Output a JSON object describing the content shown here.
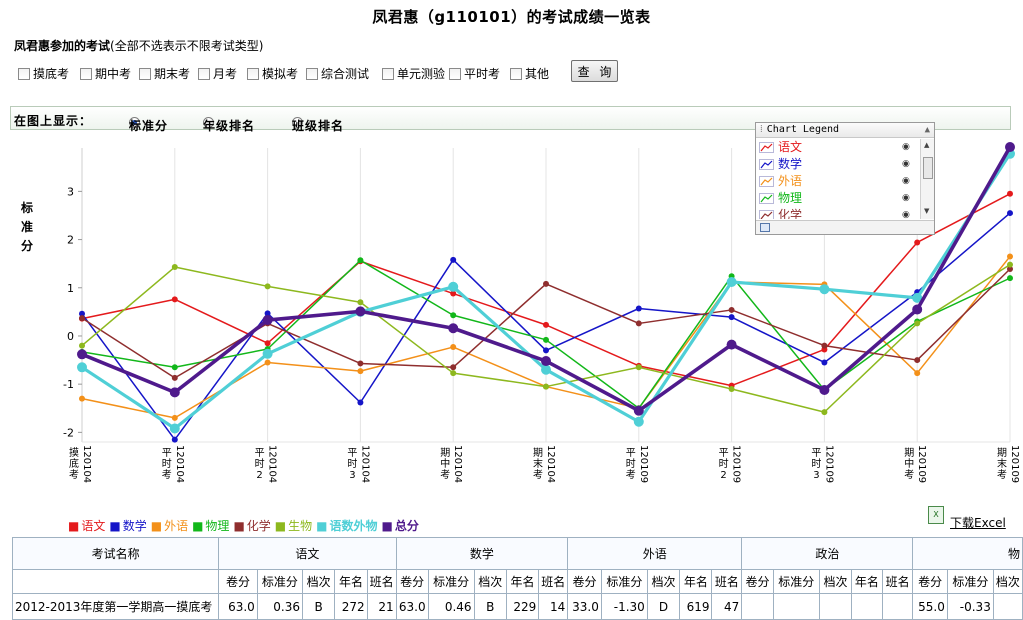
{
  "page_title": "凤君惠（g110101）的考试成绩一览表",
  "exam_filter": {
    "caption_bold": "凤君惠参加的考试",
    "caption_note": "(全部不选表示不限考试类型)",
    "options": [
      "摸底考",
      "期中考",
      "期末考",
      "月考",
      "模拟考",
      "综合测试",
      "单元测验",
      "平时考",
      "其他"
    ],
    "query_button": "查 询"
  },
  "display_options": {
    "label": "在图上显示：",
    "options": [
      "标准分",
      "年级排名",
      "班级排名"
    ],
    "selected": "标准分"
  },
  "chart_legend": {
    "title": "Chart Legend",
    "items": [
      {
        "name": "语文",
        "color": "#e41a1c"
      },
      {
        "name": "数学",
        "color": "#1515c8"
      },
      {
        "name": "外语",
        "color": "#f39019"
      },
      {
        "name": "物理",
        "color": "#12b71a"
      },
      {
        "name": "化学",
        "color": "#8f2e2e"
      }
    ]
  },
  "chart_data": {
    "type": "line",
    "ylabel": "标准分",
    "ylim": [
      -2.2,
      3.9
    ],
    "yticks": [
      3,
      2,
      1,
      0,
      -1,
      -2
    ],
    "grid": "vertical",
    "categories": [
      "摸底考120104",
      "平时考120104",
      "平时考120104",
      "平时考120104",
      "期中考120104",
      "期末考120104",
      "平时考120109",
      "平时考120109",
      "平时考120109",
      "期中考120109",
      "期末考120109"
    ],
    "x_labels": [
      {
        "main": [
          "摸",
          "底",
          "考"
        ],
        "code": "120104"
      },
      {
        "main": [
          "平",
          "时",
          "考"
        ],
        "code": "120104"
      },
      {
        "main": [
          "平",
          "时",
          "2"
        ],
        "code": "120104"
      },
      {
        "main": [
          "平",
          "时",
          "3"
        ],
        "code": "120104"
      },
      {
        "main": [
          "期",
          "中",
          "考"
        ],
        "code": "120104"
      },
      {
        "main": [
          "期",
          "末",
          "考"
        ],
        "code": "120104"
      },
      {
        "main": [
          "平",
          "时",
          "考"
        ],
        "code": "120109"
      },
      {
        "main": [
          "平",
          "时",
          "2"
        ],
        "code": "120109"
      },
      {
        "main": [
          "平",
          "时",
          "3"
        ],
        "code": "120109"
      },
      {
        "main": [
          "期",
          "中",
          "考"
        ],
        "code": "120109"
      },
      {
        "main": [
          "期",
          "末",
          "考"
        ],
        "code": "120109"
      }
    ],
    "series": [
      {
        "name": "语文",
        "color": "#e41a1c",
        "values": [
          0.36,
          0.76,
          -0.15,
          1.55,
          0.88,
          0.23,
          -0.62,
          -1.03,
          -0.28,
          1.94,
          2.95
        ]
      },
      {
        "name": "数学",
        "color": "#1515c8",
        "values": [
          0.46,
          -2.15,
          0.47,
          -1.38,
          1.58,
          -0.3,
          0.57,
          0.39,
          -0.55,
          0.91,
          2.55
        ]
      },
      {
        "name": "外语",
        "color": "#f39019",
        "values": [
          -1.3,
          -1.7,
          -0.55,
          -0.73,
          -0.23,
          -1.05,
          -1.5,
          1.12,
          1.07,
          -0.77,
          1.65
        ]
      },
      {
        "name": "物理",
        "color": "#12b71a",
        "values": [
          -0.33,
          -0.65,
          -0.27,
          1.57,
          0.43,
          -0.08,
          -1.5,
          1.24,
          -1.12,
          0.3,
          1.2
        ]
      },
      {
        "name": "化学",
        "color": "#8f2e2e",
        "values": [
          0.37,
          -0.87,
          0.26,
          -0.57,
          -0.65,
          1.08,
          0.26,
          0.54,
          -0.2,
          -0.5,
          1.39
        ]
      },
      {
        "name": "生物",
        "color": "#8db81e",
        "values": [
          -0.2,
          1.43,
          1.03,
          0.7,
          -0.77,
          -1.05,
          -0.65,
          -1.1,
          -1.58,
          0.26,
          1.48
        ]
      },
      {
        "name": "语数外物",
        "color": "#4fcfd6",
        "values": [
          -0.65,
          -1.92,
          -0.37,
          0.5,
          1.02,
          -0.7,
          -1.78,
          1.12,
          0.97,
          0.79,
          3.78
        ]
      },
      {
        "name": "总分",
        "color": "#4f1a8c",
        "values": [
          -0.38,
          -1.17,
          0.33,
          0.51,
          0.16,
          -0.52,
          -1.55,
          -0.18,
          -1.12,
          0.55,
          3.92
        ]
      }
    ]
  },
  "series_strip": [
    {
      "label": "语文",
      "color": "#e41a1c",
      "bold": false
    },
    {
      "label": "数学",
      "color": "#1515c8",
      "bold": false
    },
    {
      "label": "外语",
      "color": "#f39019",
      "bold": false
    },
    {
      "label": "物理",
      "color": "#12b71a",
      "bold": false
    },
    {
      "label": "化学",
      "color": "#8f2e2e",
      "bold": false
    },
    {
      "label": "生物",
      "color": "#8db81e",
      "bold": false
    },
    {
      "label": "语数外物",
      "color": "#4fcfd6",
      "bold": true
    },
    {
      "label": "总分",
      "color": "#4f1a8c",
      "bold": true
    }
  ],
  "download_excel": "下载Excel",
  "table": {
    "name_header": "考试名称",
    "subjects": [
      "语文",
      "数学",
      "外语",
      "政治",
      "物"
    ],
    "subcolumns": [
      "卷分",
      "标准分",
      "档次",
      "年名",
      "班名"
    ],
    "rows": [
      {
        "exam": "2012-2013年度第一学期高一摸底考",
        "cells": [
          [
            "63.0",
            "0.36",
            "B",
            "272",
            "21"
          ],
          [
            "63.0",
            "0.46",
            "B",
            "229",
            "14"
          ],
          [
            "33.0",
            "-1.30",
            "D",
            "619",
            "47"
          ],
          [
            "",
            "",
            "",
            "",
            ""
          ],
          [
            "55.0",
            "-0.33",
            ""
          ]
        ]
      }
    ]
  }
}
